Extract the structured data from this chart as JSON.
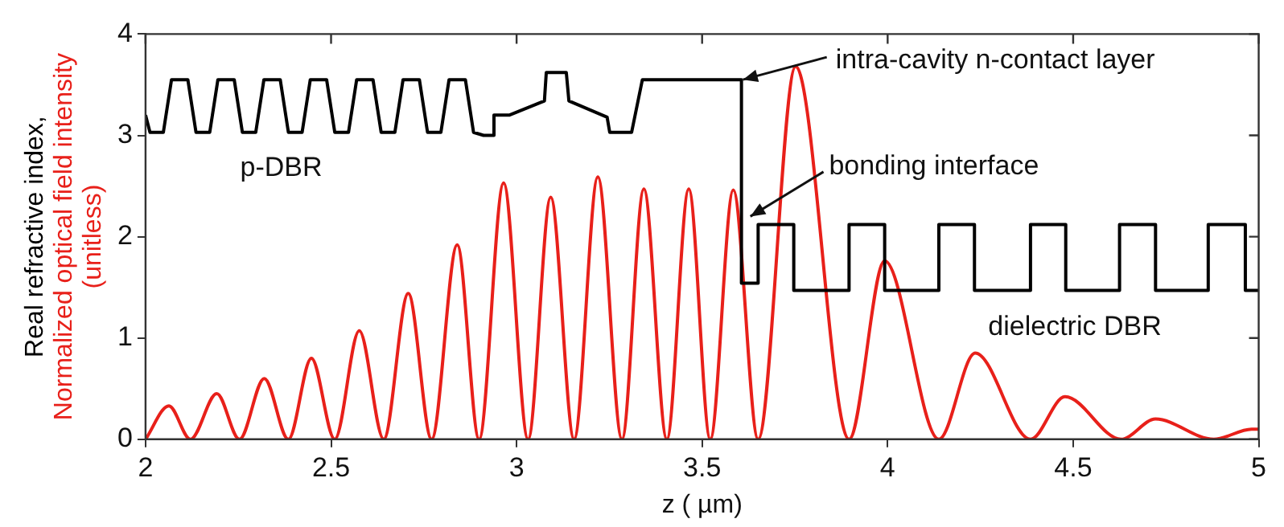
{
  "chart_data": {
    "type": "line",
    "ylabel": "Real refractive index, Normalized optical field intensity (unitless)",
    "xlabel": "z ( µm)",
    "xlim": [
      2,
      5
    ],
    "xticks": [
      2,
      2.5,
      3,
      3.5,
      4,
      4.5,
      5
    ],
    "ylim": [
      0,
      4
    ],
    "yticks": [
      0,
      1,
      2,
      3,
      4
    ],
    "grid": false,
    "legend": false,
    "marker": "none",
    "line_style": "solid",
    "series": [
      {
        "color": "#000000",
        "x": [
          2.0,
          2.012,
          2.048,
          2.07,
          2.114,
          2.136,
          2.173,
          2.195,
          2.239,
          2.261,
          2.297,
          2.319,
          2.363,
          2.385,
          2.422,
          2.444,
          2.488,
          2.51,
          2.547,
          2.569,
          2.613,
          2.635,
          2.672,
          2.694,
          2.738,
          2.76,
          2.796,
          2.818,
          2.862,
          2.884,
          2.911,
          2.936,
          2.939,
          2.98,
          3.075,
          3.08,
          3.134,
          3.141,
          3.244,
          3.251,
          3.31,
          3.339,
          3.606,
          3.606,
          3.651,
          3.651,
          3.747,
          3.747,
          3.896,
          3.896,
          3.992,
          3.992,
          4.138,
          4.138,
          4.234,
          4.234,
          4.385,
          4.385,
          4.48,
          4.48,
          4.625,
          4.625,
          4.722,
          4.722,
          4.864,
          4.864,
          4.964,
          4.964,
          5.0
        ],
        "values": [
          3.2,
          3.03,
          3.03,
          3.55,
          3.55,
          3.03,
          3.03,
          3.55,
          3.55,
          3.03,
          3.03,
          3.55,
          3.55,
          3.03,
          3.03,
          3.55,
          3.55,
          3.03,
          3.03,
          3.55,
          3.55,
          3.03,
          3.03,
          3.55,
          3.55,
          3.03,
          3.03,
          3.55,
          3.55,
          3.03,
          3.0,
          3.0,
          3.2,
          3.2,
          3.34,
          3.62,
          3.62,
          3.34,
          3.18,
          3.03,
          3.03,
          3.55,
          3.55,
          1.54,
          1.54,
          2.12,
          2.12,
          1.47,
          1.47,
          2.12,
          2.12,
          1.47,
          1.47,
          2.12,
          2.12,
          1.47,
          1.47,
          2.12,
          2.12,
          1.47,
          1.47,
          2.12,
          2.12,
          1.47,
          1.47,
          2.12,
          2.12,
          1.47,
          1.47
        ]
      },
      {
        "color": "#e8201a",
        "x": [
          2.0,
          2.063,
          2.121,
          2.192,
          2.253,
          2.32,
          2.385,
          2.447,
          2.51,
          2.576,
          2.642,
          2.708,
          2.771,
          2.84,
          2.899,
          2.965,
          3.031,
          3.092,
          3.155,
          3.219,
          3.284,
          3.343,
          3.405,
          3.464,
          3.522,
          3.584,
          3.651,
          3.752,
          3.896,
          3.992,
          4.138,
          4.236,
          4.385,
          4.478,
          4.629,
          4.722,
          4.879,
          4.981,
          5.0
        ],
        "values": [
          0,
          0.33,
          0,
          0.45,
          0,
          0.6,
          0,
          0.8,
          0,
          1.07,
          0,
          1.44,
          0,
          1.92,
          0,
          2.53,
          0,
          2.39,
          0,
          2.59,
          0,
          2.47,
          0,
          2.47,
          0,
          2.46,
          0,
          3.68,
          0,
          1.76,
          0,
          0.85,
          0,
          0.42,
          0,
          0.2,
          0,
          0.1,
          0.1
        ]
      }
    ],
    "annotations": [
      {
        "text": "intra-cavity n-contact layer",
        "x": 3.61,
        "y": 3.55
      },
      {
        "text": "bonding interface",
        "x": 3.63,
        "y": 2.2
      },
      "p-DBR",
      "dielectric DBR"
    ]
  }
}
